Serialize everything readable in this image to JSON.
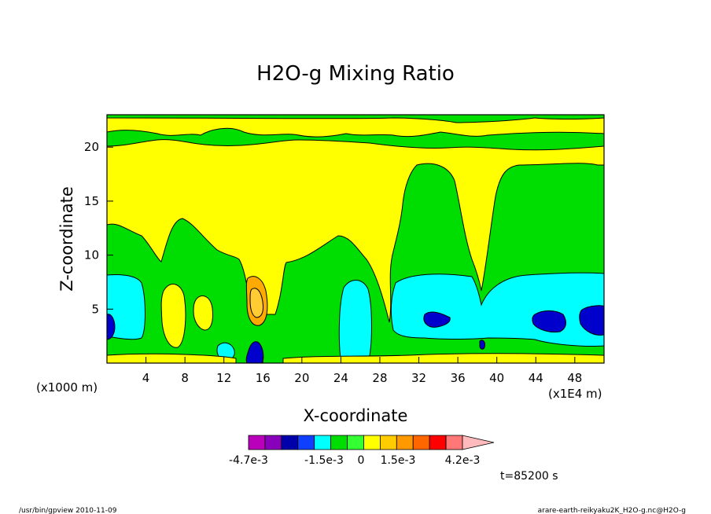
{
  "chart_data": {
    "type": "heatmap",
    "title": "H2O-g Mixing Ratio",
    "xlabel": "X-coordinate",
    "ylabel": "Z-coordinate",
    "x_axis_unit_left": "(x1000 m)",
    "x_axis_unit_right": "(x1E4 m)",
    "xlim": [
      0,
      51
    ],
    "ylim": [
      0,
      23
    ],
    "x_ticks": [
      4,
      8,
      12,
      16,
      20,
      24,
      28,
      32,
      36,
      40,
      44,
      48
    ],
    "y_ticks": [
      5,
      10,
      15,
      20
    ],
    "grid": false,
    "colorbar": {
      "labels": [
        "-4.7e-3",
        "-1.5e-3",
        "0",
        "1.5e-3",
        "4.2e-3"
      ],
      "colors": [
        "#bb00bb",
        "#8800bb",
        "#0000aa",
        "#1040ff",
        "#00ffff",
        "#00dd00",
        "#33ff33",
        "#ffff00",
        "#ffcc00",
        "#ff9900",
        "#ff6600",
        "#ff0000",
        "#ff7777",
        "#ffbbbb"
      ]
    },
    "level_colors": {
      "background_band": "#ffff00",
      "moist_band": "#00dd00",
      "cyan_band": "#00ffff",
      "blue_core": "#0000cc",
      "orange_core": "#ffaa00",
      "gold_core": "#ffcc33"
    },
    "contour_regions": [
      {
        "level": "green",
        "desc": "upper layer",
        "x": [
          0,
          51
        ],
        "z": [
          19.5,
          21.5
        ]
      },
      {
        "level": "cyan",
        "desc": "left lower",
        "x": [
          0,
          4
        ],
        "z": [
          1.5,
          8
        ]
      },
      {
        "level": "cyan",
        "desc": "right lower",
        "x": [
          29,
          51
        ],
        "z": [
          1.5,
          8
        ]
      },
      {
        "level": "orange",
        "desc": "core near x=15",
        "x": [
          14.5,
          16
        ],
        "z": [
          3.5,
          7.5
        ]
      },
      {
        "level": "blue",
        "desc": "core near x=15",
        "x": [
          14.5,
          15.5
        ],
        "z": [
          0,
          2
        ]
      }
    ]
  },
  "footer": {
    "left": "/usr/bin/gpview   2010-11-09",
    "right": "arare-earth-reikyaku2K_H2O-g.nc@H2O-g",
    "time": "t=85200 s"
  }
}
